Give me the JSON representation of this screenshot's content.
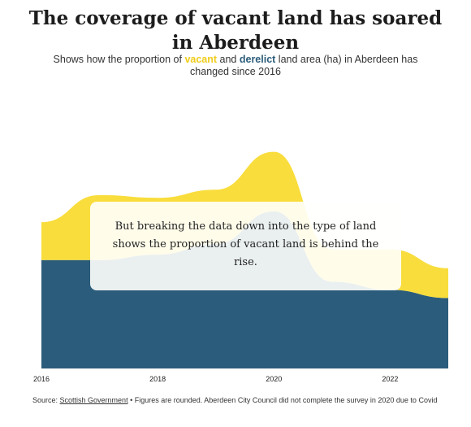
{
  "title": "The coverage of vacant land has soared in Aberdeen",
  "subtitle": {
    "prefix": "Shows how the proportion of ",
    "vacant": "vacant",
    "middle": " and ",
    "derelict": "derelict",
    "suffix": " land area (ha) in Aberdeen has changed since 2016"
  },
  "annotation": "But breaking the data down into the type of land shows the proportion of vacant land is behind the rise.",
  "source": {
    "label": "Source: ",
    "link": "Scottish Government",
    "note": " • Figures are rounded. Aberdeen City Council did not complete the survey in 2020 due to Covid"
  },
  "colors": {
    "vacant": "#f8dd3c",
    "derelict": "#2b5c7b",
    "axis": "#dddddd"
  },
  "chart_data": {
    "type": "area",
    "stacked": true,
    "xlim": [
      2016,
      2023
    ],
    "ylim": [
      0,
      100
    ],
    "x_ticks": [
      "2016",
      "2018",
      "2020",
      "2022"
    ],
    "x": [
      2016,
      2017,
      2018,
      2019,
      2020,
      2021,
      2022,
      2023
    ],
    "series": [
      {
        "key": "derelict",
        "values": [
          40,
          40,
          42,
          46,
          58,
          32,
          29,
          26
        ]
      },
      {
        "key": "vacant",
        "values": [
          14,
          24,
          21,
          20,
          22,
          12,
          15,
          11
        ]
      }
    ]
  }
}
